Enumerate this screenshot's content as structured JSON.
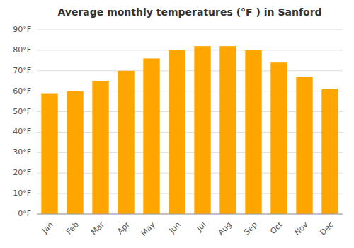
{
  "chart_data": {
    "type": "bar",
    "title": "Average monthly temperatures (°F ) in Sanford",
    "categories": [
      "Jan",
      "Feb",
      "Mar",
      "Apr",
      "May",
      "Jun",
      "Jul",
      "Aug",
      "Sep",
      "Oct",
      "Nov",
      "Dec"
    ],
    "values": [
      59,
      60,
      65,
      70,
      76,
      80,
      82,
      82,
      80,
      74,
      67,
      61
    ],
    "color": "#FFA500",
    "ylim": [
      0,
      90
    ],
    "yticks": [
      {
        "value": 0,
        "label": "0°F"
      },
      {
        "value": 10,
        "label": "10°F"
      },
      {
        "value": 20,
        "label": "20°F"
      },
      {
        "value": 30,
        "label": "30°F"
      },
      {
        "value": 40,
        "label": "40°F"
      },
      {
        "value": 50,
        "label": "50°F"
      },
      {
        "value": 60,
        "label": "60°F"
      },
      {
        "value": 70,
        "label": "70°F"
      },
      {
        "value": 80,
        "label": "80°F"
      },
      {
        "value": 90,
        "label": "90°F"
      }
    ],
    "grid": true
  }
}
